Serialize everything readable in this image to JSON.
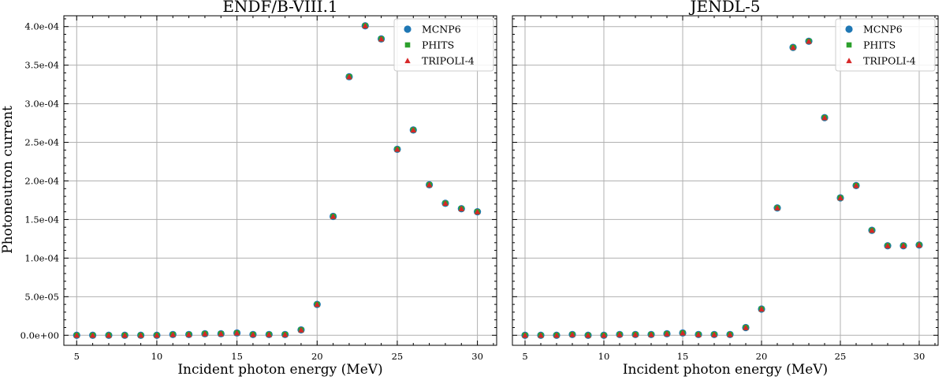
{
  "figure": {
    "ylabel": "Photoneutron current"
  },
  "chart_data": [
    {
      "type": "scatter",
      "title": "ENDF/B-VIII.1",
      "xlabel": "Incident photon energy (MeV)",
      "ylabel": "Photoneutron current",
      "xlim": [
        4.2,
        31.2
      ],
      "ylim": [
        -1.3e-05,
        0.000414
      ],
      "xticks": [
        5,
        10,
        15,
        20,
        25,
        30
      ],
      "xtick_labels": [
        "5",
        "10",
        "15",
        "20",
        "25",
        "30"
      ],
      "yticks": [
        0,
        5e-05,
        0.0001,
        0.00015,
        0.0002,
        0.00025,
        0.0003,
        0.00035,
        0.0004
      ],
      "ytick_labels": [
        "0.0e+00",
        "5.0e-05",
        "1.0e-04",
        "1.5e-04",
        "2.0e-04",
        "2.5e-04",
        "3.0e-04",
        "3.5e-04",
        "4.0e-04"
      ],
      "grid": true,
      "legend_position": "top-right",
      "x": [
        5,
        6,
        7,
        8,
        9,
        10,
        11,
        12,
        13,
        14,
        15,
        16,
        17,
        18,
        19,
        20,
        21,
        22,
        23,
        24,
        25,
        26,
        27,
        28,
        29,
        30
      ],
      "series": [
        {
          "name": "MCNP6",
          "marker": "circle",
          "color": "#1f77b4",
          "values": [
            0,
            0,
            0,
            0,
            0,
            0,
            1e-06,
            1e-06,
            2e-06,
            2e-06,
            3e-06,
            1e-06,
            1e-06,
            1e-06,
            7e-06,
            4e-05,
            0.000154,
            0.000335,
            0.000401,
            0.000384,
            0.000241,
            0.000266,
            0.000195,
            0.000171,
            0.000164,
            0.00016
          ]
        },
        {
          "name": "PHITS",
          "marker": "square",
          "color": "#2ca02c",
          "values": [
            0,
            0,
            0,
            0,
            0,
            0,
            1e-06,
            1e-06,
            2e-06,
            2e-06,
            3e-06,
            1e-06,
            1e-06,
            1e-06,
            7e-06,
            4e-05,
            0.000154,
            0.000335,
            0.000401,
            0.000384,
            0.000241,
            0.000266,
            0.000195,
            0.000171,
            0.000164,
            0.00016
          ]
        },
        {
          "name": "TRIPOLI-4",
          "marker": "triangle",
          "color": "#d62728",
          "values": [
            0,
            0,
            0,
            0,
            0,
            0,
            1e-06,
            1e-06,
            2e-06,
            2e-06,
            3e-06,
            1e-06,
            1e-06,
            1e-06,
            7e-06,
            4e-05,
            0.000154,
            0.000335,
            0.000401,
            0.000384,
            0.000241,
            0.000266,
            0.000195,
            0.000171,
            0.000164,
            0.00016
          ]
        }
      ]
    },
    {
      "type": "scatter",
      "title": "JENDL-5",
      "xlabel": "Incident photon energy (MeV)",
      "xlim": [
        4.2,
        31.2
      ],
      "ylim": [
        -1.3e-05,
        0.000414
      ],
      "xticks": [
        5,
        10,
        15,
        20,
        25,
        30
      ],
      "xtick_labels": [
        "5",
        "10",
        "15",
        "20",
        "25",
        "30"
      ],
      "grid": true,
      "legend_position": "top-right",
      "x": [
        5,
        6,
        7,
        8,
        9,
        10,
        11,
        12,
        13,
        14,
        15,
        16,
        17,
        18,
        19,
        20,
        21,
        22,
        23,
        24,
        25,
        26,
        27,
        28,
        29,
        30
      ],
      "series": [
        {
          "name": "MCNP6",
          "marker": "circle",
          "color": "#1f77b4",
          "values": [
            0,
            0,
            0,
            1e-06,
            0,
            0,
            1e-06,
            1e-06,
            1e-06,
            2e-06,
            3e-06,
            1e-06,
            1e-06,
            1e-06,
            1e-05,
            3.4e-05,
            0.000165,
            0.000373,
            0.000381,
            0.000282,
            0.000178,
            0.000194,
            0.000136,
            0.000116,
            0.000116,
            0.000117
          ]
        },
        {
          "name": "PHITS",
          "marker": "square",
          "color": "#2ca02c",
          "values": [
            0,
            0,
            0,
            1e-06,
            0,
            0,
            1e-06,
            1e-06,
            1e-06,
            2e-06,
            3e-06,
            1e-06,
            1e-06,
            1e-06,
            1e-05,
            3.4e-05,
            0.000165,
            0.000373,
            0.000381,
            0.000282,
            0.000178,
            0.000194,
            0.000136,
            0.000116,
            0.000116,
            0.000117
          ]
        },
        {
          "name": "TRIPOLI-4",
          "marker": "triangle",
          "color": "#d62728",
          "values": [
            0,
            0,
            0,
            1e-06,
            0,
            0,
            1e-06,
            1e-06,
            1e-06,
            2e-06,
            3e-06,
            1e-06,
            1e-06,
            1e-06,
            1e-05,
            3.4e-05,
            0.000165,
            0.000373,
            0.000381,
            0.000282,
            0.000178,
            0.000194,
            0.000136,
            0.000116,
            0.000116,
            0.000117
          ]
        }
      ]
    }
  ]
}
